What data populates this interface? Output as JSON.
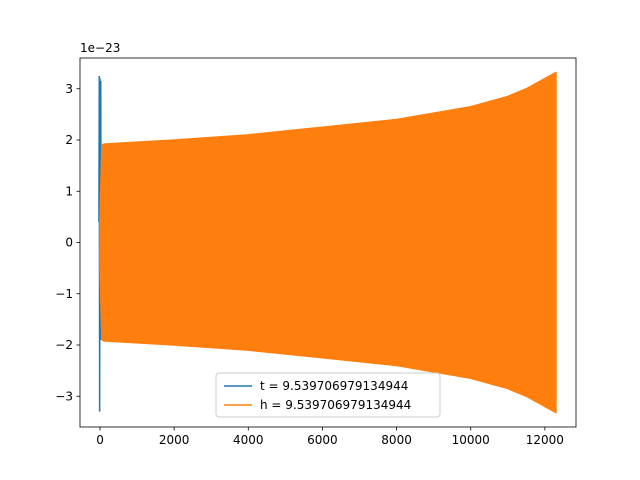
{
  "chart_data": {
    "type": "line",
    "title": "",
    "xlabel": "",
    "ylabel": "",
    "offset_text": "1e−23",
    "xlim": [
      -540,
      12840
    ],
    "ylim": [
      -3.6,
      3.6
    ],
    "x_ticks": [
      0,
      2000,
      4000,
      6000,
      8000,
      10000,
      12000
    ],
    "x_tick_labels": [
      "0",
      "2000",
      "4000",
      "6000",
      "8000",
      "10000",
      "12000"
    ],
    "y_ticks": [
      -3,
      -2,
      -1,
      0,
      1,
      2,
      3
    ],
    "y_tick_labels": [
      "−3",
      "−2",
      "−1",
      "0",
      "1",
      "2",
      "3"
    ],
    "grid": false,
    "legend_position": "lower center",
    "series": [
      {
        "name": "t = 9.539706979134944",
        "color": "#1f77b4",
        "x": [
          -30,
          -20,
          -10,
          0,
          10,
          20,
          30,
          40,
          50
        ],
        "y": [
          0.4,
          3.25,
          -3.3,
          3.2,
          -1.9,
          3.15,
          -1.9,
          0.6,
          0.0
        ]
      },
      {
        "name": "h = 9.539706979134944",
        "color": "#ff7f0e",
        "envelope_x": [
          0,
          50,
          100,
          2000,
          4000,
          6000,
          8000,
          10000,
          11000,
          11500,
          12000,
          12300
        ],
        "envelope_upper": [
          0.5,
          1.9,
          1.92,
          2.0,
          2.1,
          2.25,
          2.4,
          2.65,
          2.85,
          3.0,
          3.2,
          3.32
        ],
        "envelope_lower": [
          -0.5,
          -1.9,
          -1.92,
          -2.0,
          -2.1,
          -2.25,
          -2.4,
          -2.65,
          -2.85,
          -3.0,
          -3.2,
          -3.32
        ]
      }
    ]
  }
}
